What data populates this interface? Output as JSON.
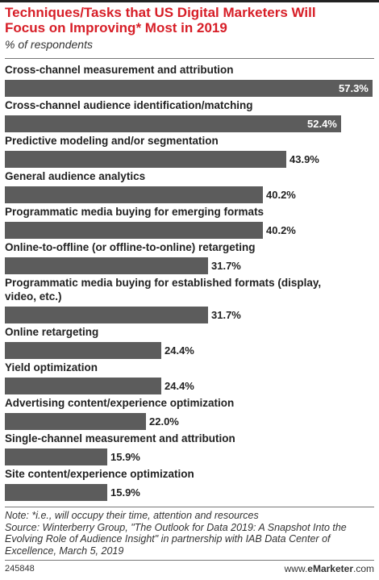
{
  "header": {
    "title": "Techniques/Tasks that US Digital Marketers Will Focus on Improving* Most in 2019",
    "subtitle": "% of respondents"
  },
  "chart_data": {
    "type": "bar",
    "orientation": "horizontal",
    "categories": [
      "Cross-channel measurement and attribution",
      "Cross-channel audience identification/matching",
      "Predictive modeling and/or segmentation",
      "General audience analytics",
      "Programmatic media buying for emerging formats",
      "Online-to-offline (or offline-to-online) retargeting",
      "Programmatic media buying for established formats (display, video, etc.)",
      "Online retargeting",
      "Yield optimization",
      "Advertising content/experience optimization",
      "Single-channel measurement and attribution",
      "Site content/experience optimization"
    ],
    "values": [
      57.3,
      52.4,
      43.9,
      40.2,
      40.2,
      31.7,
      31.7,
      24.4,
      24.4,
      22.0,
      15.9,
      15.9
    ],
    "value_labels": [
      "57.3%",
      "52.4%",
      "43.9%",
      "40.2%",
      "40.2%",
      "31.7%",
      "31.7%",
      "24.4%",
      "24.4%",
      "22.0%",
      "15.9%",
      "15.9%"
    ],
    "xlim": [
      0,
      57.3
    ],
    "bar_color": "#5c5c5c",
    "grid": false,
    "legend": "none"
  },
  "footer": {
    "note": "Note: *i.e., will occupy their time, attention and resources",
    "source": "Source: Winterberry Group, \"The Outlook for Data 2019: A Snapshot Into the Evolving Role of Audience Insight\" in partnership with IAB Data Center of Excellence, March 5, 2019",
    "chart_id": "245848",
    "brand_prefix": "www.",
    "brand_name": "eMarketer",
    "brand_suffix": ".com"
  }
}
